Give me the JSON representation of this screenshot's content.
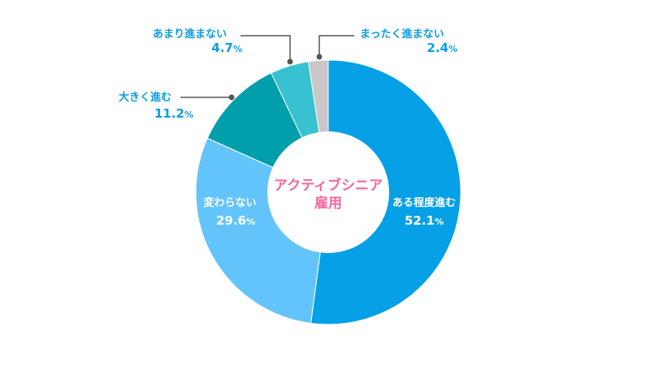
{
  "chart_data": {
    "type": "pie",
    "variant": "donut",
    "center_label": [
      "アクティブシニア",
      "雇用"
    ],
    "start": "top",
    "direction": "clockwise",
    "slices": [
      {
        "label": "ある程度進む",
        "value": 52.1,
        "value_text": "52.1",
        "color": "#05a0e5"
      },
      {
        "label": "変わらない",
        "value": 29.6,
        "value_text": "29.6",
        "color": "#63c4fb"
      },
      {
        "label": "大きく進む",
        "value": 11.2,
        "value_text": "11.2",
        "color": "#019fab"
      },
      {
        "label": "あまり進まない",
        "value": 4.7,
        "value_text": "4.7",
        "color": "#37c1d1"
      },
      {
        "label": "まったく進まない",
        "value": 2.4,
        "value_text": "2.4",
        "color": "#c8c8c8"
      }
    ],
    "unit": "%"
  }
}
